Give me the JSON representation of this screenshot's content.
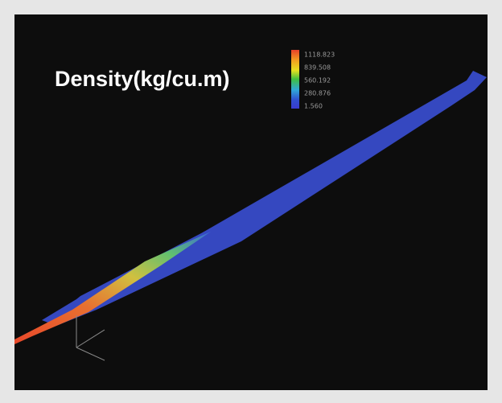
{
  "title": "Density(kg/cu.m)",
  "colorbar": {
    "labels": [
      "1118.823",
      "839.508",
      "560.192",
      "280.876",
      "1.560"
    ]
  }
}
